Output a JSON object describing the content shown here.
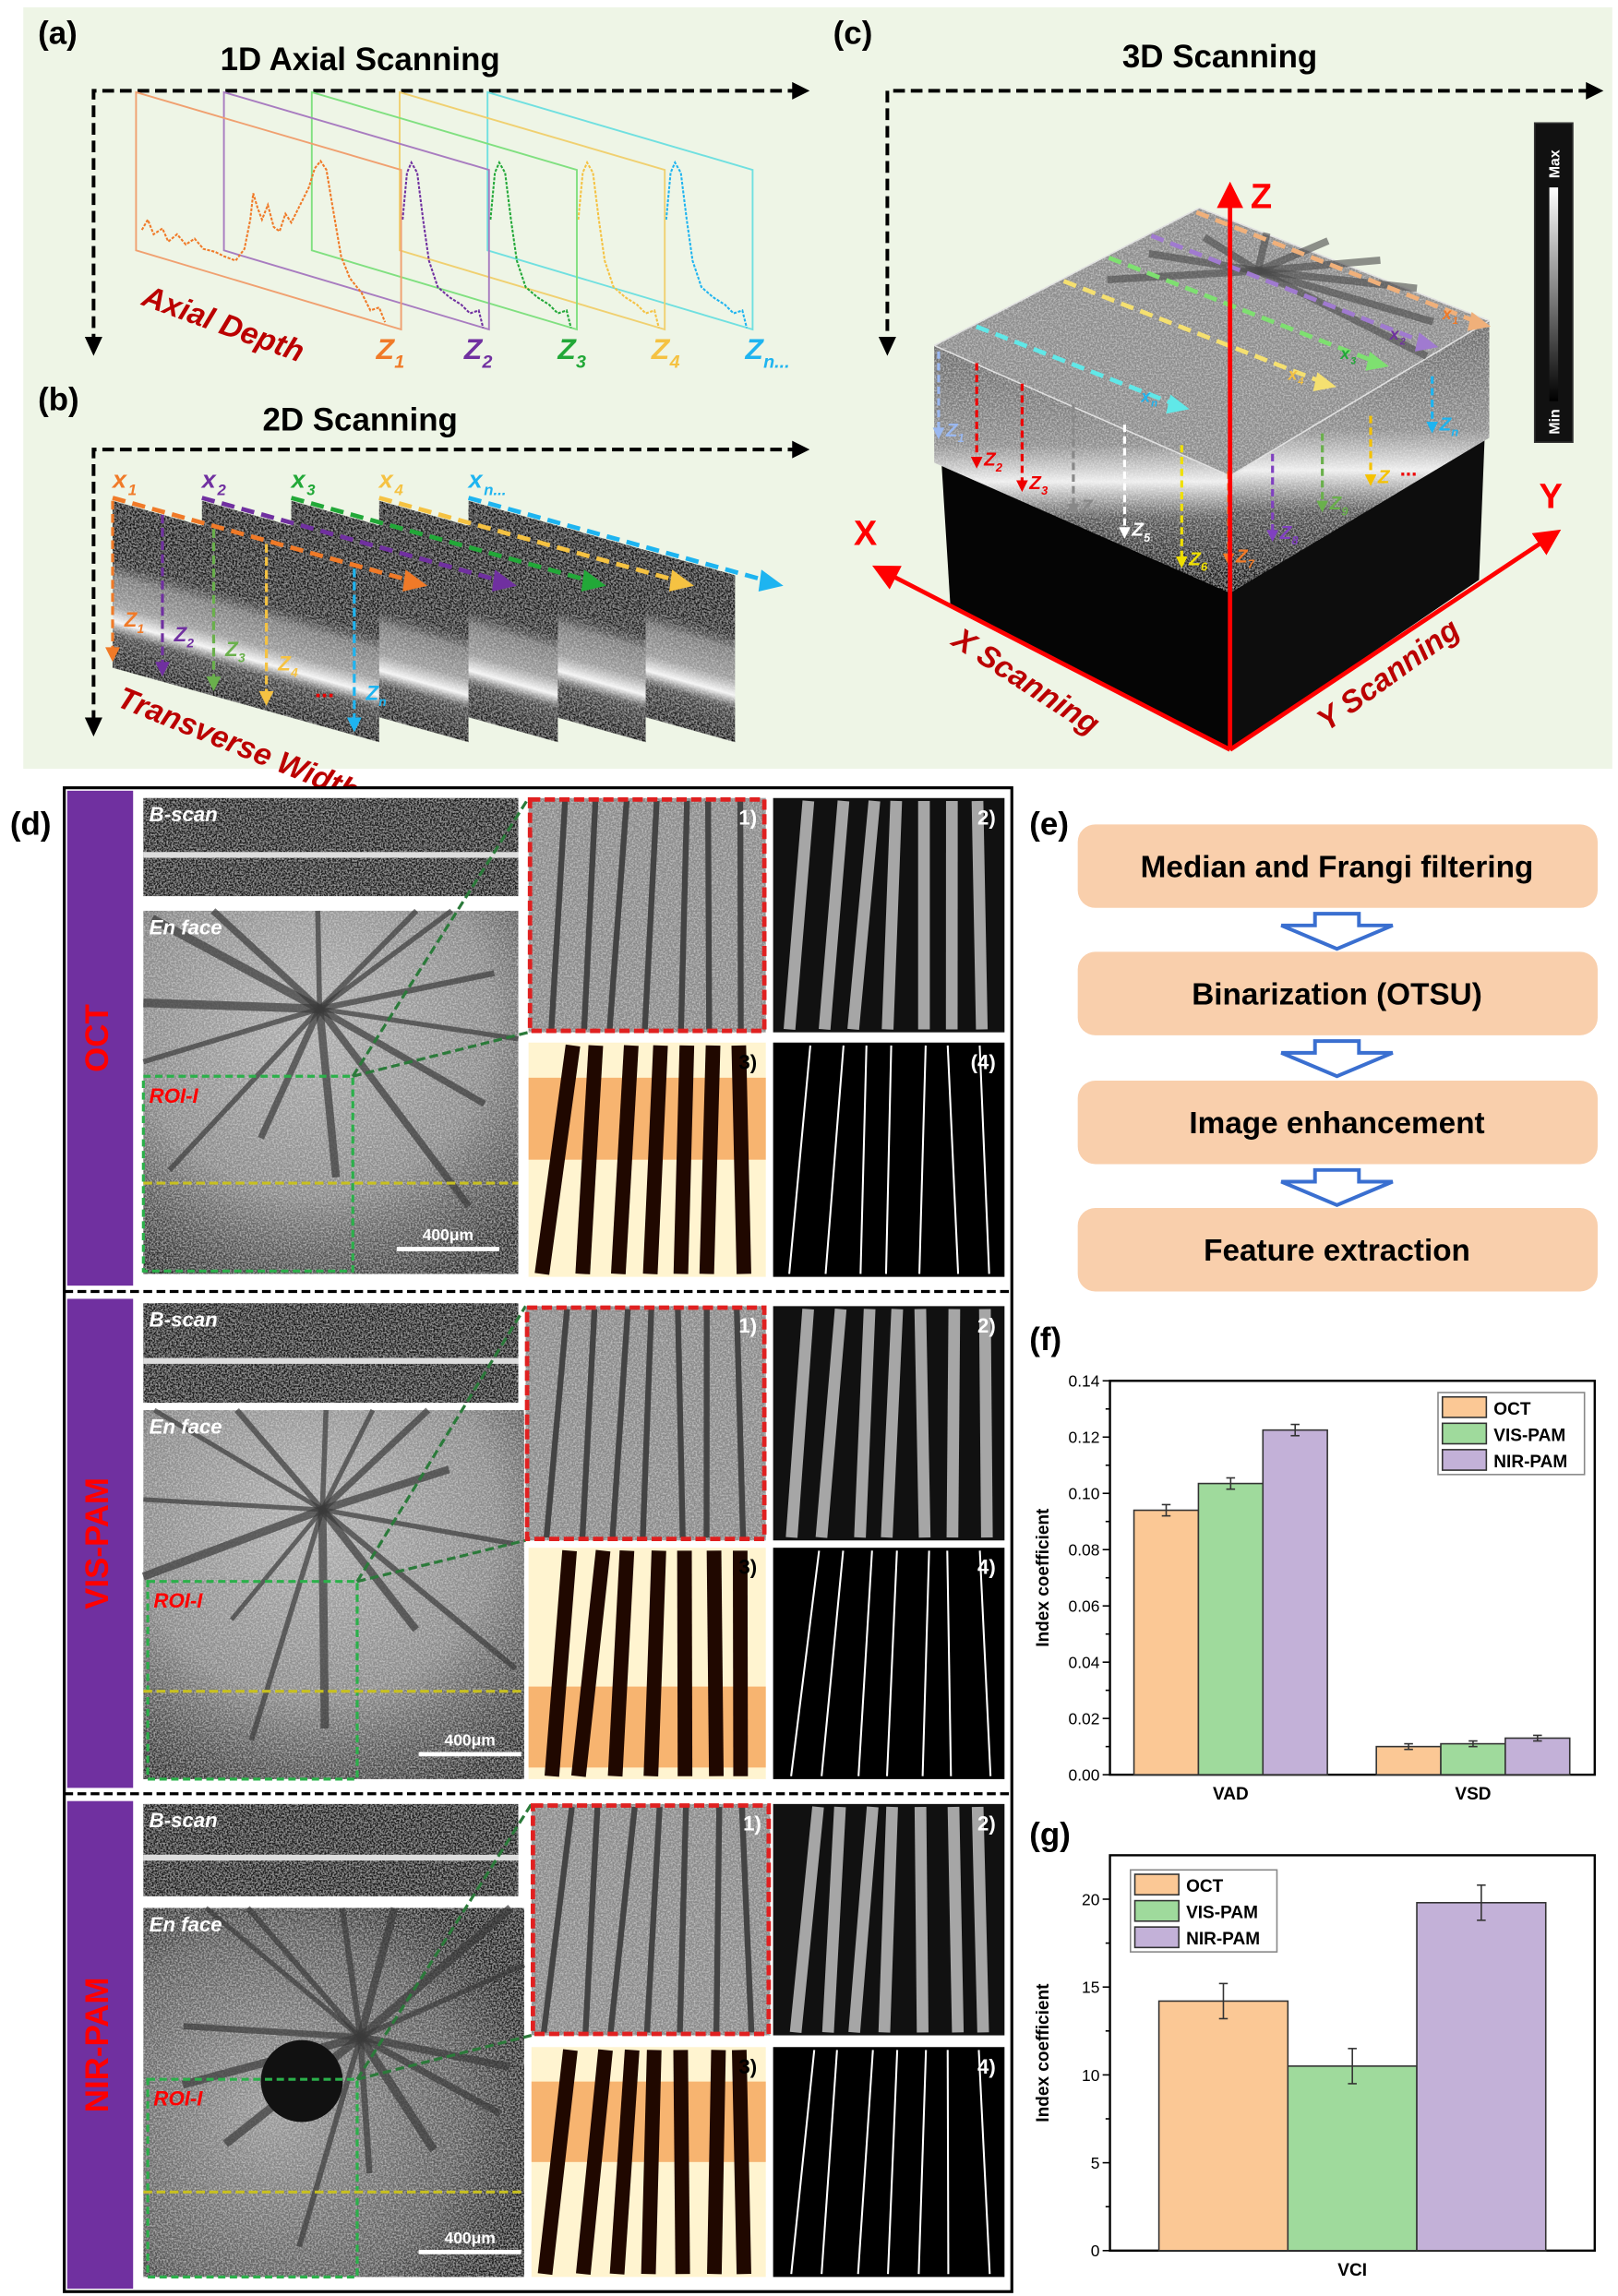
{
  "panels": {
    "a": {
      "label": "(a)",
      "title": "1D Axial Scanning",
      "axis_text": "Axial Depth",
      "z_labels": [
        {
          "base": "Z",
          "sub": "1"
        },
        {
          "base": "Z",
          "sub": "2"
        },
        {
          "base": "Z",
          "sub": "3"
        },
        {
          "base": "Z",
          "sub": "4"
        },
        {
          "base": "Z",
          "sub": "n..."
        }
      ]
    },
    "b": {
      "label": "(b)",
      "title": "2D Scanning",
      "axis_text": "Transverse Width",
      "x_labels": [
        {
          "base": "x",
          "sub": "1"
        },
        {
          "base": "x",
          "sub": "2"
        },
        {
          "base": "x",
          "sub": "3"
        },
        {
          "base": "x",
          "sub": "4"
        },
        {
          "base": "x",
          "sub": "n..."
        }
      ],
      "z_labels": [
        {
          "base": "Z",
          "sub": "1"
        },
        {
          "base": "Z",
          "sub": "2"
        },
        {
          "base": "Z",
          "sub": "3"
        },
        {
          "base": "Z",
          "sub": "4"
        },
        {
          "base": "Z",
          "sub": "n"
        }
      ],
      "ellipsis": "..."
    },
    "c": {
      "label": "(c)",
      "title": "3D Scanning",
      "axis_z": "Z",
      "axis_x": "X",
      "axis_y": "Y",
      "x_scan": "X Scanning",
      "y_scan": "Y Scanning",
      "colorbar_max": "Max",
      "colorbar_min": "Min",
      "top_labels": [
        {
          "base": "x",
          "sub": "1"
        },
        {
          "base": "x",
          "sub": "2"
        },
        {
          "base": "x",
          "sub": "3"
        },
        {
          "base": "x",
          "sub": "4"
        },
        {
          "base": "x",
          "sub": "n"
        }
      ],
      "z_labels": [
        {
          "base": "Z",
          "sub": "1"
        },
        {
          "base": "Z",
          "sub": "2"
        },
        {
          "base": "Z",
          "sub": "3"
        },
        {
          "base": "Z",
          "sub": "4"
        },
        {
          "base": "Z",
          "sub": "5"
        },
        {
          "base": "Z",
          "sub": "6"
        },
        {
          "base": "Z",
          "sub": "7"
        },
        {
          "base": "Z",
          "sub": "8"
        },
        {
          "base": "Z",
          "sub": "9"
        },
        {
          "base": "Z",
          "sub": ""
        },
        {
          "base": "Z",
          "sub": "n"
        }
      ],
      "ellipsis": "..."
    },
    "d": {
      "label": "(d)",
      "rows": [
        {
          "modality": "OCT",
          "bscan": "B-scan",
          "enface": "En face",
          "roi": "ROI-I",
          "scale": "400μm",
          "thumbs": [
            "1)",
            "2)",
            "3)",
            "(4)"
          ]
        },
        {
          "modality": "VIS-PAM",
          "bscan": "B-scan",
          "enface": "En face",
          "roi": "ROI-I",
          "scale": "400μm",
          "thumbs": [
            "1)",
            "2)",
            "3)",
            "4)"
          ]
        },
        {
          "modality": "NIR-PAM",
          "bscan": "B-scan",
          "enface": "En face",
          "roi": "ROI-I",
          "scale": "400μm",
          "thumbs": [
            "1)",
            "2)",
            "3)",
            "4)"
          ]
        }
      ]
    },
    "e": {
      "label": "(e)",
      "steps": [
        "Median and Frangi filtering",
        "Binarization (OTSU)",
        "Image enhancement",
        "Feature extraction"
      ]
    },
    "f": {
      "label": "(f)"
    },
    "g": {
      "label": "(g)"
    }
  },
  "colors": {
    "oct": "#fbc895",
    "vis": "#9fda9c",
    "nir": "#c3b1d8",
    "purple_band": "#7030a0",
    "flow_box": "#f9cfac",
    "panel_bg": "#eef5e6"
  },
  "chart_data": [
    {
      "id": "f",
      "type": "bar",
      "title": "",
      "xlabel": "",
      "ylabel": "Index coefficient",
      "categories": [
        "VAD",
        "VSD"
      ],
      "ylim": [
        0,
        0.14
      ],
      "yticks": [
        0,
        0.02,
        0.04,
        0.06,
        0.08,
        0.1,
        0.12,
        0.14
      ],
      "ytick_labels": [
        "0.00",
        "0.02",
        "0.04",
        "0.06",
        "0.08",
        "0.10",
        "0.12",
        "0.14"
      ],
      "legend": "top-right",
      "series": [
        {
          "name": "OCT",
          "values": [
            0.094,
            0.01
          ],
          "errors": [
            0.002,
            0.001
          ]
        },
        {
          "name": "VIS-PAM",
          "values": [
            0.1035,
            0.011
          ],
          "errors": [
            0.002,
            0.001
          ]
        },
        {
          "name": "NIR-PAM",
          "values": [
            0.1225,
            0.013
          ],
          "errors": [
            0.002,
            0.001
          ]
        }
      ]
    },
    {
      "id": "g",
      "type": "bar",
      "title": "",
      "xlabel": "",
      "ylabel": "Index coefficient",
      "categories": [
        "VCI"
      ],
      "ylim": [
        0,
        22.5
      ],
      "yticks": [
        0,
        5,
        10,
        15,
        20
      ],
      "ytick_labels": [
        "0",
        "5",
        "10",
        "15",
        "20"
      ],
      "legend": "top-left",
      "series": [
        {
          "name": "OCT",
          "values": [
            14.2
          ],
          "errors": [
            1.0
          ]
        },
        {
          "name": "VIS-PAM",
          "values": [
            10.5
          ],
          "errors": [
            1.0
          ]
        },
        {
          "name": "NIR-PAM",
          "values": [
            19.8
          ],
          "errors": [
            1.0
          ]
        }
      ]
    }
  ]
}
